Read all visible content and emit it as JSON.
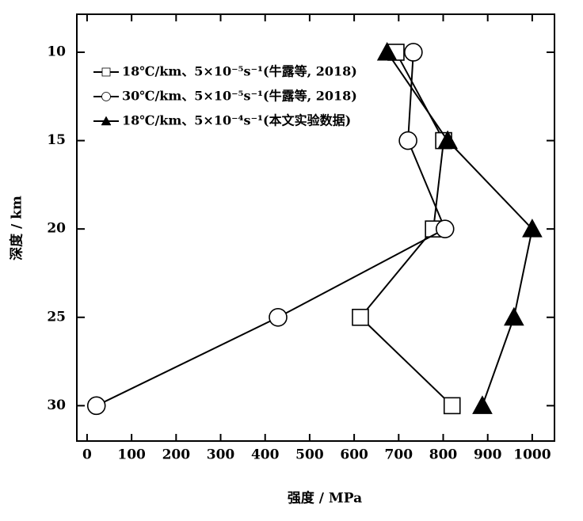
{
  "chart_data": {
    "type": "line",
    "x_label": "强度 / MPa",
    "y_label": "深度 / km",
    "xlim": [
      -23,
      1050
    ],
    "xticks": [
      0,
      100,
      200,
      300,
      400,
      500,
      600,
      700,
      800,
      900,
      1000
    ],
    "ylim": [
      32,
      7.85
    ],
    "yticks": [
      10,
      15,
      20,
      25,
      30
    ],
    "y_inverted": true,
    "legend": "upper-left",
    "series": [
      {
        "name": "18℃/km、5×10⁻⁵s⁻¹(牛露等, 2018)",
        "color": "#000000",
        "marker": "square",
        "x": [
          694,
          801,
          778,
          614,
          820
        ],
        "values": [
          10,
          15,
          20,
          25,
          30
        ]
      },
      {
        "name": "30℃/km、5×10⁻⁵s⁻¹(牛露等, 2018)",
        "color": "#000000",
        "marker": "circle",
        "x": [
          733,
          721,
          804,
          429,
          21
        ],
        "values": [
          10,
          15,
          20,
          25,
          30
        ]
      },
      {
        "name": "18℃/km、5×10⁻⁴s⁻¹(本文实验数据)",
        "color": "#000000",
        "marker": "triangle",
        "x": [
          674,
          810,
          1000,
          959,
          888
        ],
        "values": [
          10,
          15,
          20,
          25,
          30
        ]
      }
    ]
  }
}
